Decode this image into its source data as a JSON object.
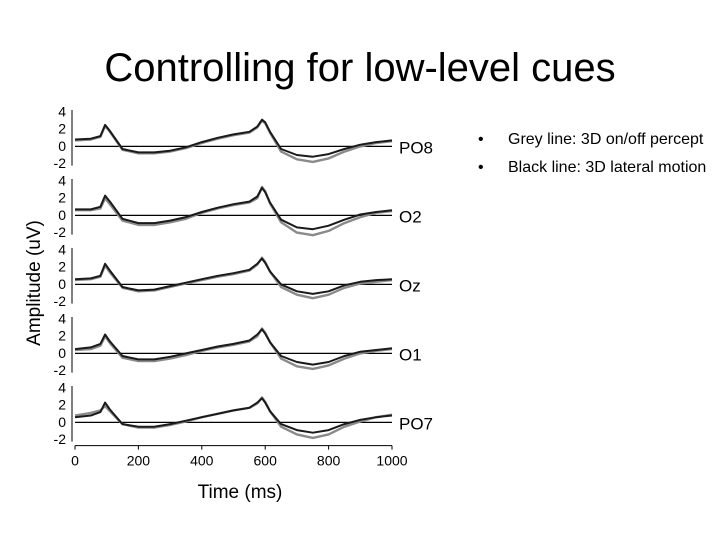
{
  "slide": {
    "title": "Controlling for low-level cues"
  },
  "bullets": [
    {
      "marker": "•",
      "text": "Grey line: 3D on/off percept"
    },
    {
      "marker": "•",
      "text": "Black line: 3D lateral motion"
    }
  ],
  "colors": {
    "grey_series": "#8a8a8a",
    "black_series": "#1a1a1a",
    "baseline": "#000000"
  },
  "chart_data": {
    "type": "line",
    "title": "",
    "xlabel": "Time (ms)",
    "ylabel": "Amplitude (uV)",
    "xlim": [
      0,
      1000
    ],
    "ylim": [
      -2,
      4
    ],
    "x_ticks": [
      "0",
      "200",
      "400",
      "600",
      "800",
      "1000"
    ],
    "y_ticks": [
      "4",
      "2",
      "0",
      "-2"
    ],
    "x": [
      0,
      50,
      80,
      95,
      110,
      150,
      200,
      250,
      300,
      350,
      400,
      450,
      500,
      550,
      575,
      590,
      600,
      615,
      650,
      700,
      750,
      800,
      850,
      900,
      950,
      1000
    ],
    "panels": [
      {
        "channel": "PO8",
        "series": [
          {
            "name": "Grey line: 3D on/off percept",
            "values": [
              0.7,
              0.8,
              1.1,
              2.4,
              1.7,
              -0.4,
              -0.8,
              -0.8,
              -0.6,
              -0.2,
              0.4,
              0.9,
              1.3,
              1.6,
              2.2,
              3.0,
              2.7,
              1.6,
              -0.6,
              -1.5,
              -1.8,
              -1.4,
              -0.6,
              0.0,
              0.4,
              0.6
            ]
          },
          {
            "name": "Black line: 3D lateral motion",
            "values": [
              0.8,
              0.9,
              1.2,
              2.5,
              1.8,
              -0.3,
              -0.7,
              -0.7,
              -0.5,
              -0.1,
              0.5,
              1.0,
              1.4,
              1.7,
              2.3,
              3.1,
              2.8,
              1.7,
              -0.3,
              -1.0,
              -1.2,
              -0.9,
              -0.3,
              0.2,
              0.5,
              0.7
            ]
          }
        ]
      },
      {
        "channel": "O2",
        "series": [
          {
            "name": "Grey line: 3D on/off percept",
            "values": [
              0.6,
              0.6,
              0.8,
              2.0,
              1.3,
              -0.6,
              -1.1,
              -1.1,
              -0.8,
              -0.4,
              0.3,
              0.8,
              1.2,
              1.5,
              2.0,
              3.3,
              2.8,
              1.4,
              -0.8,
              -2.0,
              -2.3,
              -1.8,
              -0.9,
              -0.2,
              0.3,
              0.5
            ]
          },
          {
            "name": "Black line: 3D lateral motion",
            "values": [
              0.7,
              0.7,
              1.0,
              2.3,
              1.6,
              -0.4,
              -0.9,
              -0.9,
              -0.6,
              -0.2,
              0.4,
              0.9,
              1.3,
              1.6,
              2.2,
              3.2,
              2.7,
              1.5,
              -0.5,
              -1.4,
              -1.6,
              -1.2,
              -0.5,
              0.1,
              0.4,
              0.6
            ]
          }
        ]
      },
      {
        "channel": "Oz",
        "series": [
          {
            "name": "Grey line: 3D on/off percept",
            "values": [
              0.5,
              0.6,
              0.9,
              2.2,
              1.4,
              -0.4,
              -0.8,
              -0.7,
              -0.3,
              0.1,
              0.5,
              0.9,
              1.2,
              1.6,
              2.3,
              3.1,
              2.6,
              1.5,
              -0.3,
              -1.2,
              -1.6,
              -1.2,
              -0.4,
              0.1,
              0.3,
              0.5
            ]
          },
          {
            "name": "Black line: 3D lateral motion",
            "values": [
              0.6,
              0.7,
              1.0,
              2.4,
              1.6,
              -0.3,
              -0.7,
              -0.6,
              -0.2,
              0.2,
              0.6,
              1.0,
              1.3,
              1.7,
              2.4,
              3.0,
              2.5,
              1.5,
              0.0,
              -0.8,
              -1.1,
              -0.8,
              -0.1,
              0.3,
              0.5,
              0.6
            ]
          }
        ]
      },
      {
        "channel": "O1",
        "series": [
          {
            "name": "Grey line: 3D on/off percept",
            "values": [
              0.4,
              0.5,
              0.9,
              2.0,
              1.2,
              -0.5,
              -0.9,
              -0.9,
              -0.6,
              -0.2,
              0.3,
              0.7,
              1.0,
              1.4,
              2.0,
              2.9,
              2.4,
              1.3,
              -0.6,
              -1.5,
              -1.8,
              -1.4,
              -0.6,
              0.0,
              0.3,
              0.5
            ]
          },
          {
            "name": "Black line: 3D lateral motion",
            "values": [
              0.5,
              0.7,
              1.1,
              2.2,
              1.4,
              -0.3,
              -0.7,
              -0.7,
              -0.4,
              0.0,
              0.4,
              0.8,
              1.1,
              1.5,
              2.2,
              2.8,
              2.3,
              1.3,
              -0.3,
              -1.0,
              -1.3,
              -1.0,
              -0.3,
              0.2,
              0.4,
              0.6
            ]
          }
        ]
      },
      {
        "channel": "PO7",
        "series": [
          {
            "name": "Grey line: 3D on/off percept",
            "values": [
              0.8,
              1.1,
              1.4,
              1.9,
              1.3,
              -0.2,
              -0.6,
              -0.6,
              -0.3,
              0.1,
              0.6,
              1.0,
              1.4,
              1.7,
              2.2,
              2.9,
              2.4,
              1.3,
              -0.5,
              -1.4,
              -1.8,
              -1.4,
              -0.5,
              0.1,
              0.6,
              0.9
            ]
          },
          {
            "name": "Black line: 3D lateral motion",
            "values": [
              0.6,
              0.8,
              1.2,
              2.3,
              1.5,
              -0.2,
              -0.5,
              -0.5,
              -0.2,
              0.2,
              0.6,
              1.0,
              1.4,
              1.7,
              2.3,
              2.8,
              2.3,
              1.3,
              -0.2,
              -0.9,
              -1.2,
              -0.9,
              -0.2,
              0.3,
              0.6,
              0.8
            ]
          }
        ]
      }
    ]
  }
}
